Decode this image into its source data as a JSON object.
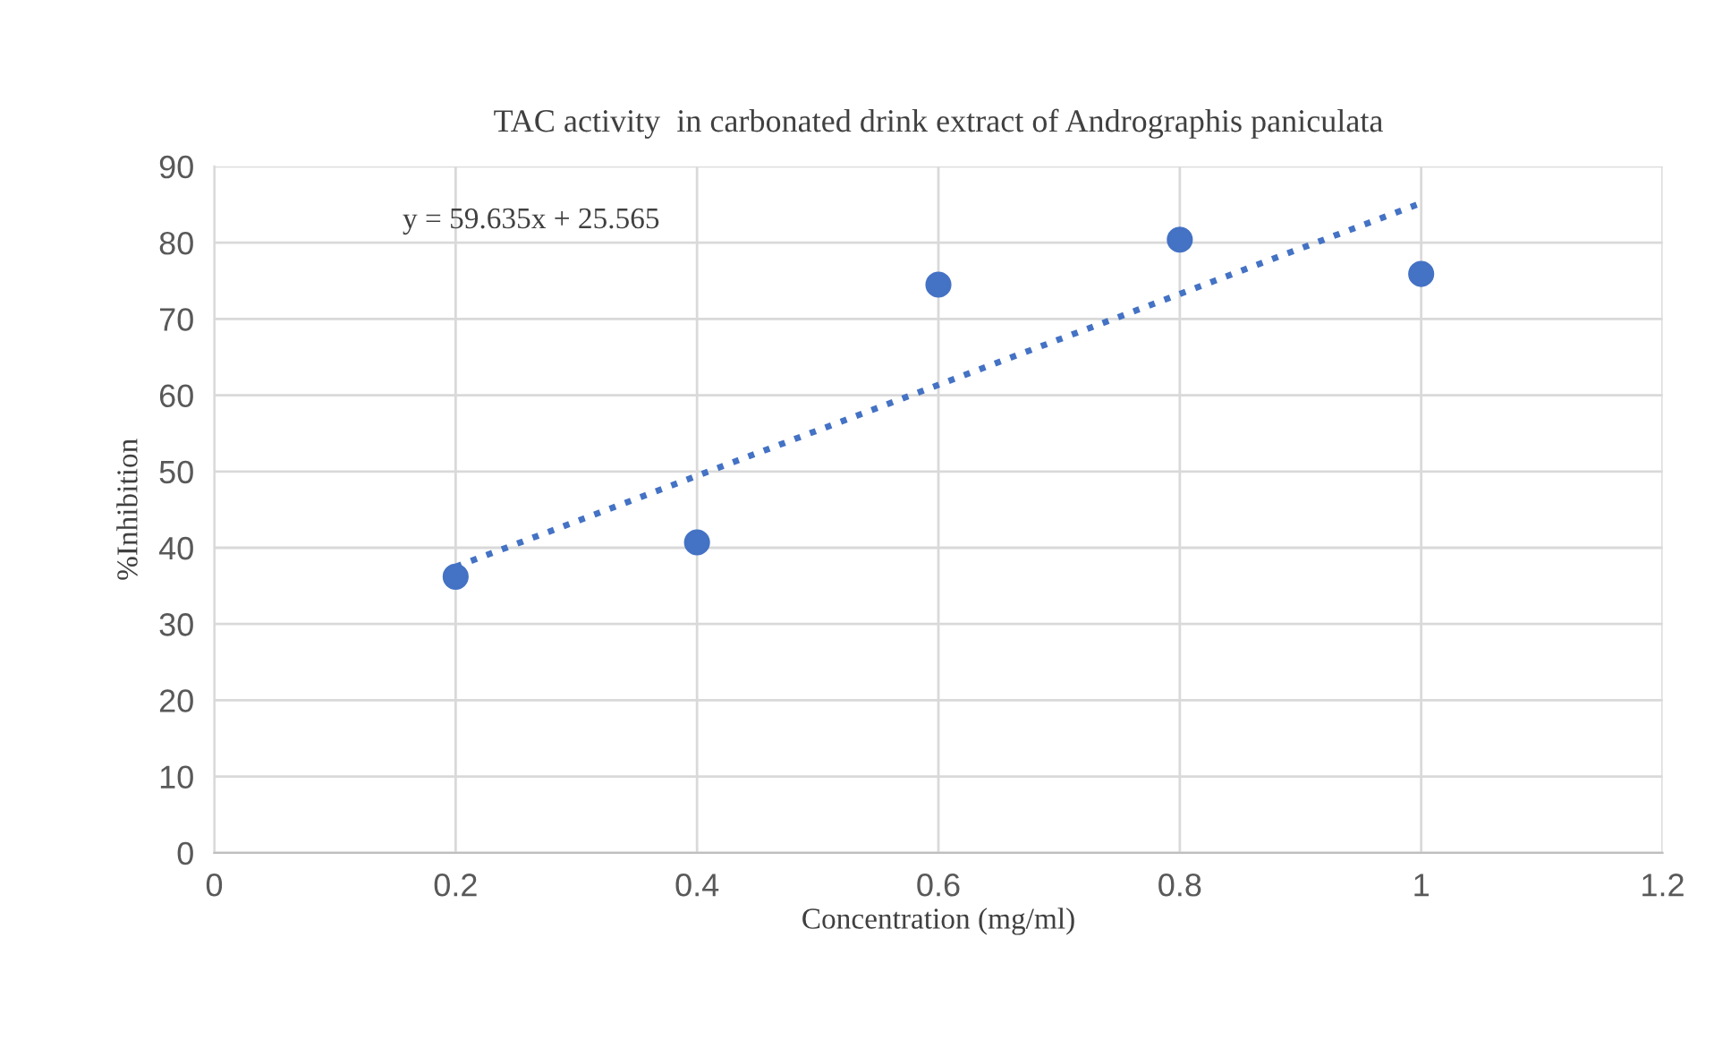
{
  "chart_data": {
    "type": "scatter",
    "title": "TAC activity  in carbonated drink extract of Andrographis paniculata",
    "xlabel": "Concentration (mg/ml)",
    "ylabel": "%Inhibition",
    "series": [
      {
        "color": "#4472c4",
        "x": [
          0.2,
          0.4,
          0.6,
          0.8,
          1.0
        ],
        "values": [
          36.2,
          40.7,
          74.5,
          80.4,
          75.9
        ],
        "marker": "circle"
      },
      {
        "type": "line",
        "color": "#4472c4",
        "x": [
          0.2,
          1.0
        ],
        "values": [
          37.5,
          85.2
        ],
        "line_style": "dotted",
        "marker": "none"
      }
    ],
    "annotations": [
      "y = 59.635x + 25.565"
    ],
    "xlim": [
      0,
      1.2
    ],
    "xticks": [
      0,
      0.2,
      0.4,
      0.6,
      0.8,
      1,
      1.2
    ],
    "ylim": [
      0,
      90
    ],
    "yticks": [
      0,
      10,
      20,
      30,
      40,
      50,
      60,
      70,
      80,
      90
    ],
    "grid": true,
    "legend": false
  }
}
